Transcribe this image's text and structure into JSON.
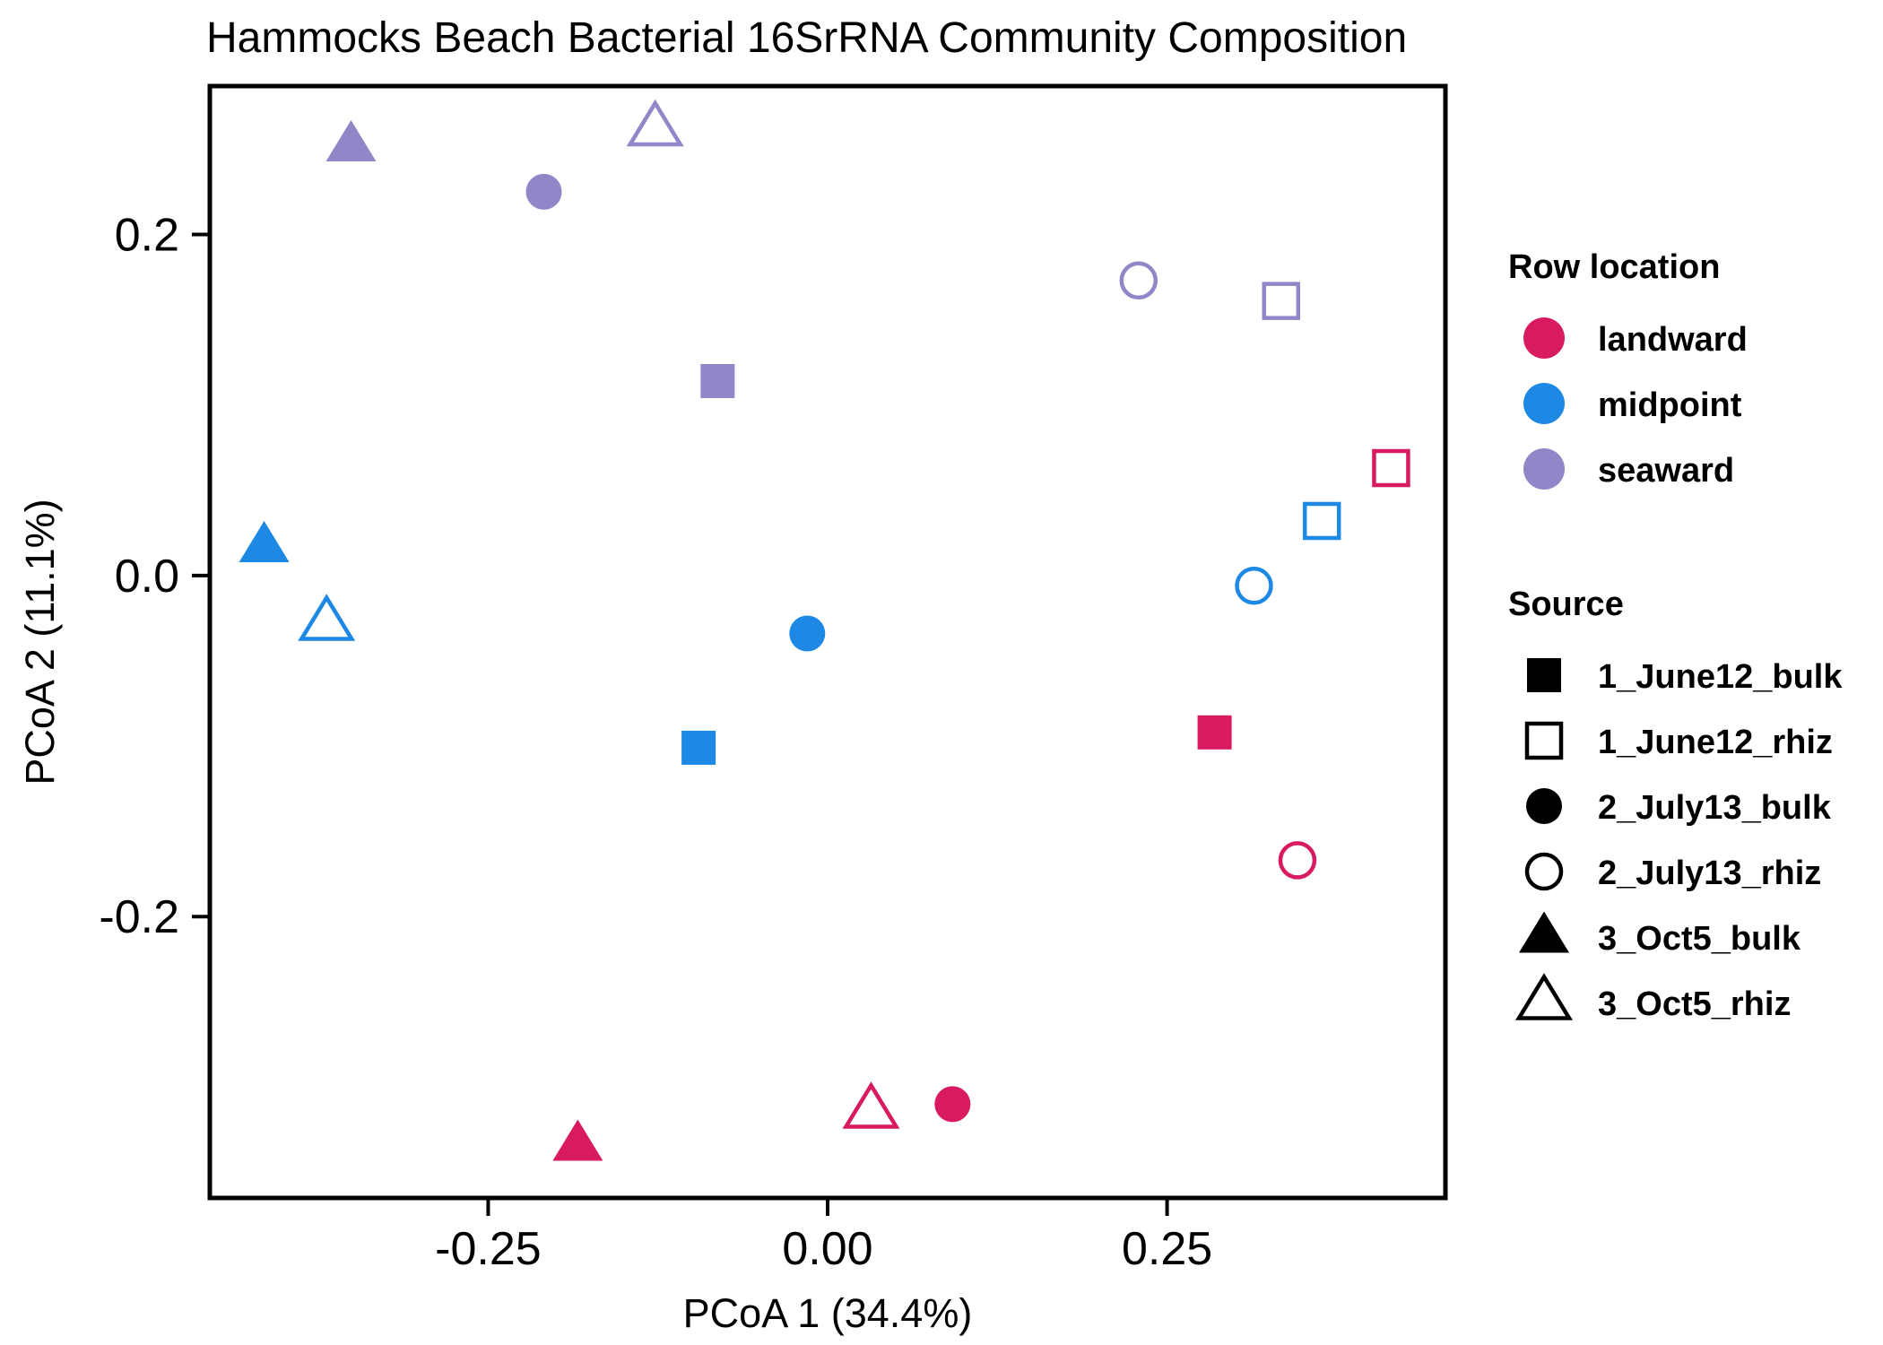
{
  "chart_data": {
    "type": "scatter",
    "title": "Hammocks Beach Bacterial 16SrRNA Community Composition",
    "xlabel": "PCoA 1 (34.4%)",
    "ylabel": "PCoA 2 (11.1%)",
    "xlim": [
      -0.455,
      0.455
    ],
    "ylim": [
      -0.365,
      0.287
    ],
    "x_ticks": [
      {
        "value": -0.25,
        "label": "-0.25"
      },
      {
        "value": 0.0,
        "label": "0.00"
      },
      {
        "value": 0.25,
        "label": "0.25"
      }
    ],
    "y_ticks": [
      {
        "value": 0.2,
        "label": "0.2"
      },
      {
        "value": 0.0,
        "label": "0.0"
      },
      {
        "value": -0.2,
        "label": "-0.2"
      }
    ],
    "grid": false,
    "legend_placement": "right",
    "color_legend": {
      "title": "Row location",
      "items": [
        {
          "name": "landward",
          "color": "#d81b60"
        },
        {
          "name": "midpoint",
          "color": "#1e88e5"
        },
        {
          "name": "seaward",
          "color": "#9186c8"
        }
      ]
    },
    "shape_legend": {
      "title": "Source",
      "items": [
        {
          "name": "1_June12_bulk",
          "shape": "square",
          "filled": true
        },
        {
          "name": "1_June12_rhiz",
          "shape": "square",
          "filled": false
        },
        {
          "name": "2_July13_bulk",
          "shape": "circle",
          "filled": true
        },
        {
          "name": "2_July13_rhiz",
          "shape": "circle",
          "filled": false
        },
        {
          "name": "3_Oct5_bulk",
          "shape": "triangle",
          "filled": true
        },
        {
          "name": "3_Oct5_rhiz",
          "shape": "triangle",
          "filled": false
        }
      ]
    },
    "points": [
      {
        "x": -0.351,
        "y": 0.252,
        "row": "seaward",
        "source": "3_Oct5_bulk"
      },
      {
        "x": -0.127,
        "y": 0.262,
        "row": "seaward",
        "source": "3_Oct5_rhiz"
      },
      {
        "x": -0.209,
        "y": 0.225,
        "row": "seaward",
        "source": "2_July13_bulk"
      },
      {
        "x": 0.229,
        "y": 0.173,
        "row": "seaward",
        "source": "2_July13_rhiz"
      },
      {
        "x": 0.334,
        "y": 0.161,
        "row": "seaward",
        "source": "1_June12_rhiz"
      },
      {
        "x": -0.081,
        "y": 0.114,
        "row": "seaward",
        "source": "1_June12_bulk"
      },
      {
        "x": 0.415,
        "y": 0.063,
        "row": "landward",
        "source": "1_June12_rhiz"
      },
      {
        "x": 0.364,
        "y": 0.032,
        "row": "midpoint",
        "source": "1_June12_rhiz"
      },
      {
        "x": -0.415,
        "y": 0.017,
        "row": "midpoint",
        "source": "3_Oct5_bulk"
      },
      {
        "x": 0.314,
        "y": -0.006,
        "row": "midpoint",
        "source": "2_July13_rhiz"
      },
      {
        "x": -0.369,
        "y": -0.028,
        "row": "midpoint",
        "source": "3_Oct5_rhiz"
      },
      {
        "x": -0.015,
        "y": -0.034,
        "row": "midpoint",
        "source": "2_July13_bulk"
      },
      {
        "x": 0.285,
        "y": -0.092,
        "row": "landward",
        "source": "1_June12_bulk"
      },
      {
        "x": -0.095,
        "y": -0.101,
        "row": "midpoint",
        "source": "1_June12_bulk"
      },
      {
        "x": 0.346,
        "y": -0.167,
        "row": "landward",
        "source": "2_July13_rhiz"
      },
      {
        "x": 0.092,
        "y": -0.31,
        "row": "landward",
        "source": "2_July13_bulk"
      },
      {
        "x": 0.032,
        "y": -0.314,
        "row": "landward",
        "source": "3_Oct5_rhiz"
      },
      {
        "x": -0.184,
        "y": -0.334,
        "row": "landward",
        "source": "3_Oct5_bulk"
      }
    ]
  }
}
